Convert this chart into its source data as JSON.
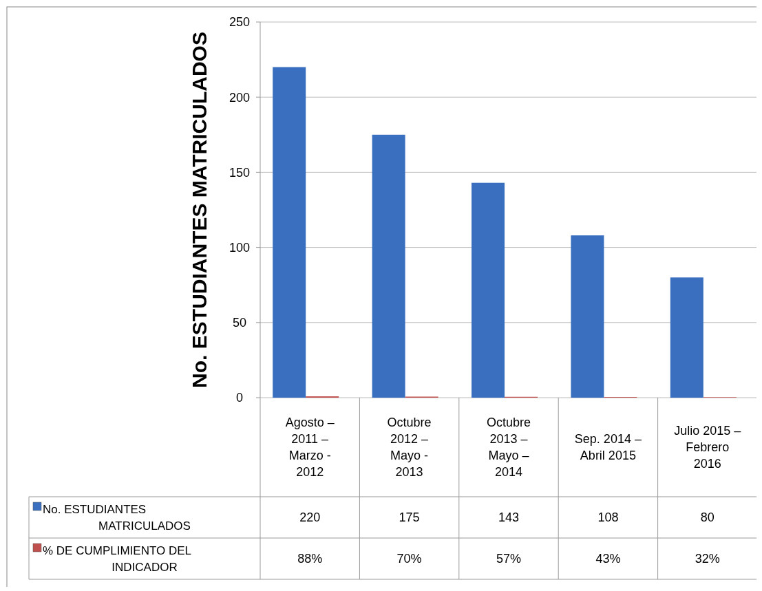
{
  "chart_data": {
    "type": "bar",
    "ylabel": "No. ESTUDIANTES MATRICULADOS",
    "categories": [
      "Agosto –\n2011 –\nMarzo -\n2012",
      "Octubre\n2012  –\nMayo -\n2013",
      "Octubre\n2013 –\nMayo –\n2014",
      "Sep. 2014 –\nAbril 2015",
      "Julio 2015 –\nFebrero\n2016"
    ],
    "series": [
      {
        "name": "No. ESTUDIANTES MATRICULADOS",
        "color": "#3a6fbf",
        "values": [
          220,
          175,
          143,
          108,
          80
        ],
        "value_labels": [
          "220",
          "175",
          "143",
          "108",
          "80"
        ]
      },
      {
        "name": "% DE CUMPLIMIENTO DEL INDICADOR",
        "color": "#c0504d",
        "values": [
          0.88,
          0.7,
          0.57,
          0.43,
          0.32
        ],
        "value_labels": [
          "88%",
          "70%",
          "57%",
          "43%",
          "32%"
        ]
      }
    ],
    "ylim": [
      0,
      250
    ],
    "yticks": [
      0,
      50,
      100,
      150,
      200,
      250
    ],
    "grid": "y",
    "legend": "bottom"
  }
}
